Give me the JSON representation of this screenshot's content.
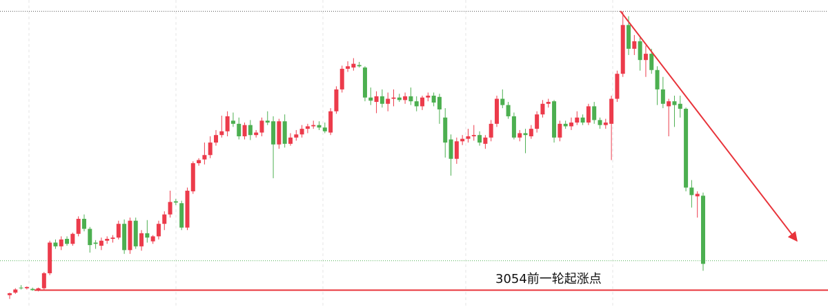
{
  "chart_data": {
    "type": "candlestick",
    "up_color": "#ec3b4b",
    "down_color": "#4caf50",
    "ylim": [
      3027,
      3518
    ],
    "open": [
      3046,
      3050,
      3058,
      3057,
      3056,
      3054,
      3057,
      3081,
      3130,
      3124,
      3136,
      3128,
      3144,
      3168,
      3152,
      3130,
      3125,
      3133,
      3136,
      3138,
      3160,
      3118,
      3165,
      3124,
      3145,
      3132,
      3140,
      3160,
      3175,
      3196,
      3193,
      3154,
      3212,
      3257,
      3263,
      3270,
      3290,
      3302,
      3308,
      3325,
      3320,
      3300,
      3318,
      3302,
      3306,
      3325,
      3324,
      3287,
      3324,
      3288,
      3298,
      3303,
      3312,
      3316,
      3318,
      3314,
      3306,
      3340,
      3375,
      3408,
      3410,
      3414,
      3410,
      3362,
      3355,
      3364,
      3352,
      3360,
      3362,
      3358,
      3364,
      3356,
      3348,
      3362,
      3365,
      3363,
      3330,
      3295,
      3264,
      3292,
      3296,
      3300,
      3302,
      3288,
      3298,
      3320,
      3360,
      3350,
      3332,
      3298,
      3305,
      3300,
      3312,
      3335,
      3352,
      3356,
      3298,
      3320,
      3316,
      3322,
      3330,
      3322,
      3348,
      3326,
      3318,
      3320,
      3360,
      3400,
      3478,
      3440,
      3452,
      3422,
      3432,
      3406,
      3375,
      3348,
      3356,
      3352,
      3344,
      3218,
      3204,
      3205
    ],
    "high": [
      3050,
      3057,
      3062,
      3060,
      3058,
      3058,
      3083,
      3133,
      3135,
      3140,
      3140,
      3146,
      3172,
      3175,
      3155,
      3134,
      3138,
      3140,
      3142,
      3165,
      3167,
      3170,
      3170,
      3150,
      3166,
      3142,
      3165,
      3180,
      3213,
      3200,
      3197,
      3218,
      3260,
      3265,
      3290,
      3300,
      3310,
      3333,
      3340,
      3338,
      3330,
      3322,
      3326,
      3310,
      3330,
      3340,
      3332,
      3328,
      3335,
      3305,
      3310,
      3318,
      3320,
      3325,
      3324,
      3322,
      3345,
      3380,
      3413,
      3420,
      3425,
      3419,
      3412,
      3378,
      3372,
      3375,
      3370,
      3375,
      3368,
      3370,
      3378,
      3364,
      3365,
      3370,
      3370,
      3368,
      3345,
      3303,
      3298,
      3302,
      3312,
      3318,
      3308,
      3302,
      3326,
      3365,
      3375,
      3355,
      3338,
      3310,
      3312,
      3318,
      3340,
      3358,
      3360,
      3358,
      3325,
      3325,
      3330,
      3340,
      3335,
      3352,
      3355,
      3330,
      3328,
      3365,
      3405,
      3500,
      3492,
      3462,
      3460,
      3445,
      3440,
      3412,
      3395,
      3360,
      3365,
      3365,
      3346,
      3230,
      3212,
      3210
    ],
    "low": [
      3040,
      3048,
      3055,
      3055,
      3053,
      3052,
      3055,
      3078,
      3120,
      3118,
      3125,
      3125,
      3140,
      3148,
      3114,
      3120,
      3118,
      3128,
      3130,
      3135,
      3112,
      3112,
      3120,
      3117,
      3130,
      3128,
      3135,
      3150,
      3170,
      3190,
      3150,
      3150,
      3208,
      3253,
      3255,
      3265,
      3285,
      3298,
      3300,
      3315,
      3295,
      3295,
      3294,
      3298,
      3300,
      3318,
      3233,
      3280,
      3282,
      3285,
      3293,
      3298,
      3305,
      3312,
      3310,
      3305,
      3302,
      3336,
      3370,
      3403,
      3405,
      3410,
      3356,
      3350,
      3337,
      3346,
      3340,
      3348,
      3355,
      3352,
      3350,
      3340,
      3342,
      3356,
      3348,
      3320,
      3266,
      3237,
      3256,
      3286,
      3290,
      3293,
      3285,
      3280,
      3292,
      3315,
      3345,
      3328,
      3295,
      3292,
      3273,
      3296,
      3306,
      3330,
      3346,
      3290,
      3292,
      3312,
      3310,
      3318,
      3318,
      3318,
      3320,
      3312,
      3312,
      3262,
      3355,
      3395,
      3430,
      3430,
      3405,
      3395,
      3400,
      3350,
      3345,
      3300,
      3315,
      3330,
      3212,
      3186,
      3170,
      3085
    ],
    "close": [
      3049,
      3055,
      3057,
      3059,
      3054,
      3057,
      3081,
      3130,
      3124,
      3135,
      3128,
      3144,
      3168,
      3152,
      3126,
      3128,
      3133,
      3136,
      3138,
      3160,
      3118,
      3165,
      3124,
      3145,
      3138,
      3140,
      3160,
      3175,
      3195,
      3194,
      3154,
      3213,
      3257,
      3262,
      3270,
      3290,
      3302,
      3308,
      3332,
      3320,
      3300,
      3318,
      3302,
      3306,
      3325,
      3322,
      3287,
      3324,
      3288,
      3298,
      3303,
      3312,
      3316,
      3318,
      3314,
      3308,
      3340,
      3375,
      3408,
      3412,
      3416,
      3412,
      3362,
      3357,
      3364,
      3352,
      3360,
      3362,
      3358,
      3364,
      3356,
      3348,
      3362,
      3365,
      3354,
      3343,
      3290,
      3264,
      3292,
      3296,
      3300,
      3302,
      3290,
      3298,
      3320,
      3360,
      3350,
      3332,
      3298,
      3305,
      3302,
      3312,
      3335,
      3352,
      3355,
      3298,
      3320,
      3316,
      3322,
      3330,
      3322,
      3348,
      3326,
      3318,
      3322,
      3360,
      3400,
      3478,
      3440,
      3452,
      3422,
      3432,
      3406,
      3375,
      3352,
      3356,
      3350,
      3344,
      3218,
      3206,
      3208,
      3096
    ],
    "levels": [
      {
        "value": 3500,
        "color": "#555555",
        "style": "dotted"
      },
      {
        "value": 3101,
        "color": "#4caf50",
        "style": "dotted"
      },
      {
        "value": 3054,
        "color": "#e8333a",
        "style": "solid"
      }
    ],
    "annotation": "3054前一轮起涨点"
  }
}
